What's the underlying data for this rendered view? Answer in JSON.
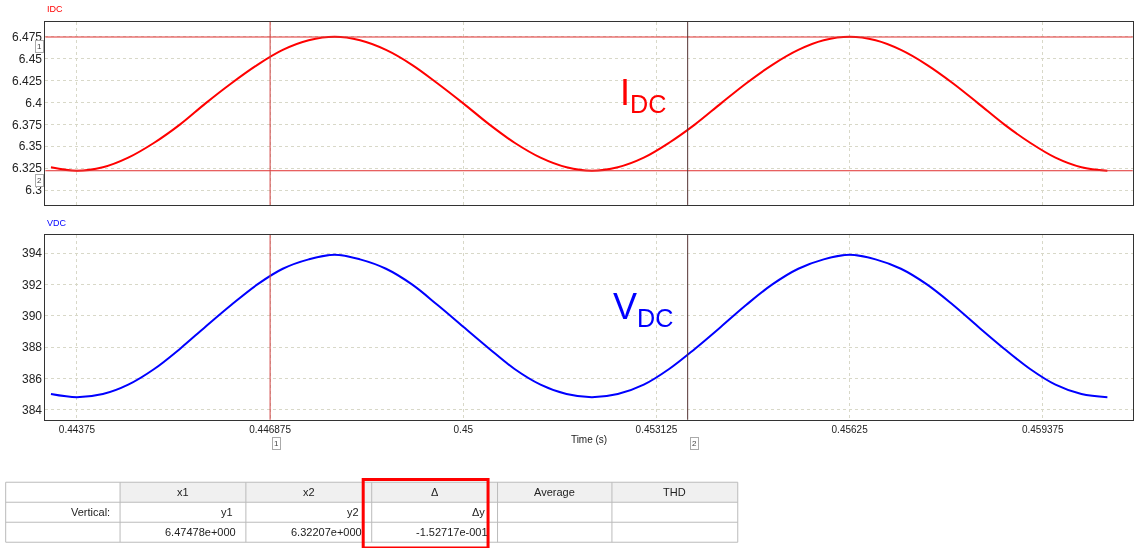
{
  "chart_data": [
    {
      "type": "line",
      "title": "IDC",
      "tick_labels": "y",
      "grid": true,
      "line_style": "solid",
      "marker": "none",
      "x": [
        0.44333,
        0.44375,
        0.44417,
        0.44458,
        0.445,
        0.44542,
        0.44583,
        0.44625,
        0.44667,
        0.44708,
        0.4475,
        0.44792,
        0.44833,
        0.44875,
        0.44917,
        0.44958,
        0.45,
        0.45042,
        0.45083,
        0.45125,
        0.45167,
        0.45208,
        0.4525,
        0.45292,
        0.45333,
        0.45375,
        0.45417,
        0.45458,
        0.455,
        0.45542,
        0.45583,
        0.45625,
        0.45667,
        0.45708,
        0.4575,
        0.45792,
        0.45833,
        0.45875,
        0.45917,
        0.45958,
        0.46,
        0.46042
      ],
      "series": [
        {
          "color": "#ff0000",
          "values": [
            6.326,
            6.322,
            6.326,
            6.337,
            6.354,
            6.375,
            6.399,
            6.422,
            6.443,
            6.46,
            6.471,
            6.475,
            6.471,
            6.46,
            6.443,
            6.422,
            6.399,
            6.375,
            6.354,
            6.337,
            6.326,
            6.322,
            6.326,
            6.337,
            6.354,
            6.375,
            6.399,
            6.422,
            6.443,
            6.46,
            6.471,
            6.475,
            6.471,
            6.46,
            6.443,
            6.422,
            6.399,
            6.375,
            6.354,
            6.337,
            6.326,
            6.322
          ]
        }
      ],
      "xlim": [
        0.44324,
        0.46083
      ],
      "xticks": [
        {
          "value": 0.44375,
          "label": null
        },
        {
          "value": 0.446875,
          "label": null
        },
        {
          "value": 0.45,
          "label": null
        },
        {
          "value": 0.453125,
          "label": null
        },
        {
          "value": 0.45625,
          "label": null
        },
        {
          "value": 0.459375,
          "label": null
        }
      ],
      "ylim": [
        6.283,
        6.492
      ],
      "yticks": [
        6.3,
        6.325,
        6.35,
        6.375,
        6.4,
        6.425,
        6.45,
        6.475
      ],
      "ref_lines": [
        {
          "axis": "y",
          "value": 6.47478,
          "color": "#e03030"
        },
        {
          "axis": "y",
          "value": 6.32207,
          "color": "#e03030"
        },
        {
          "axis": "x",
          "value": 0.446875,
          "color": "#d04040"
        },
        {
          "axis": "x",
          "value": 0.45363,
          "color": "#553333"
        }
      ],
      "annotations": [
        "I$_{DC}$",
        {
          "text": "1",
          "x": 0.44324,
          "y": 6.47478
        },
        {
          "text": "2",
          "x": 0.44324,
          "y": 6.32207
        }
      ]
    },
    {
      "type": "line",
      "title": "VDC",
      "xlabel": "Time (s)",
      "grid": true,
      "line_style": "solid",
      "marker": "none",
      "x": [
        0.44333,
        0.44375,
        0.44417,
        0.44458,
        0.445,
        0.44542,
        0.44583,
        0.44625,
        0.44667,
        0.44708,
        0.4475,
        0.44792,
        0.44833,
        0.44875,
        0.44917,
        0.44958,
        0.45,
        0.45042,
        0.45083,
        0.45125,
        0.45167,
        0.45208,
        0.4525,
        0.45292,
        0.45333,
        0.45375,
        0.45417,
        0.45458,
        0.455,
        0.45542,
        0.45583,
        0.45625,
        0.45667,
        0.45708,
        0.4575,
        0.45792,
        0.45833,
        0.45875,
        0.45917,
        0.45958,
        0.46,
        0.46042
      ],
      "series": [
        {
          "color": "#0000ff",
          "values": [
            385.0,
            384.8,
            385.0,
            385.6,
            386.6,
            387.9,
            389.3,
            390.7,
            392.0,
            393.0,
            393.6,
            393.9,
            393.6,
            393.0,
            392.0,
            390.7,
            389.3,
            387.9,
            386.6,
            385.6,
            385.0,
            384.8,
            385.0,
            385.6,
            386.6,
            387.9,
            389.3,
            390.7,
            392.0,
            393.0,
            393.6,
            393.9,
            393.6,
            393.0,
            392.0,
            390.7,
            389.3,
            387.9,
            386.6,
            385.6,
            385.0,
            384.8
          ]
        }
      ],
      "xlim": [
        0.44324,
        0.46083
      ],
      "xticks": [
        {
          "value": 0.44375,
          "label": "0.44375"
        },
        {
          "value": 0.446875,
          "label": "0.446875"
        },
        {
          "value": 0.45,
          "label": "0.45"
        },
        {
          "value": 0.453125,
          "label": "0.453125"
        },
        {
          "value": 0.45625,
          "label": "0.45625"
        },
        {
          "value": 0.459375,
          "label": "0.459375"
        }
      ],
      "ylim": [
        383.36,
        395.15
      ],
      "yticks": [
        384,
        386,
        388,
        390,
        392,
        394
      ],
      "ref_lines": [
        {
          "axis": "x",
          "value": 0.446875,
          "color": "#d04040"
        },
        {
          "axis": "x",
          "value": 0.45363,
          "color": "#553333"
        }
      ],
      "annotations": [
        "V$_{DC}$",
        {
          "text": "1",
          "x": 0.446875,
          "y": 383.36
        },
        {
          "text": "2",
          "x": 0.45363,
          "y": 383.36
        },
        "x1",
        "x2",
        "Δ",
        "Average",
        "THD",
        "Vertical:",
        "y1",
        "y2",
        "Δy",
        "6.47478e+000",
        "6.32207e+000",
        "-1.52717e-001"
      ]
    }
  ]
}
